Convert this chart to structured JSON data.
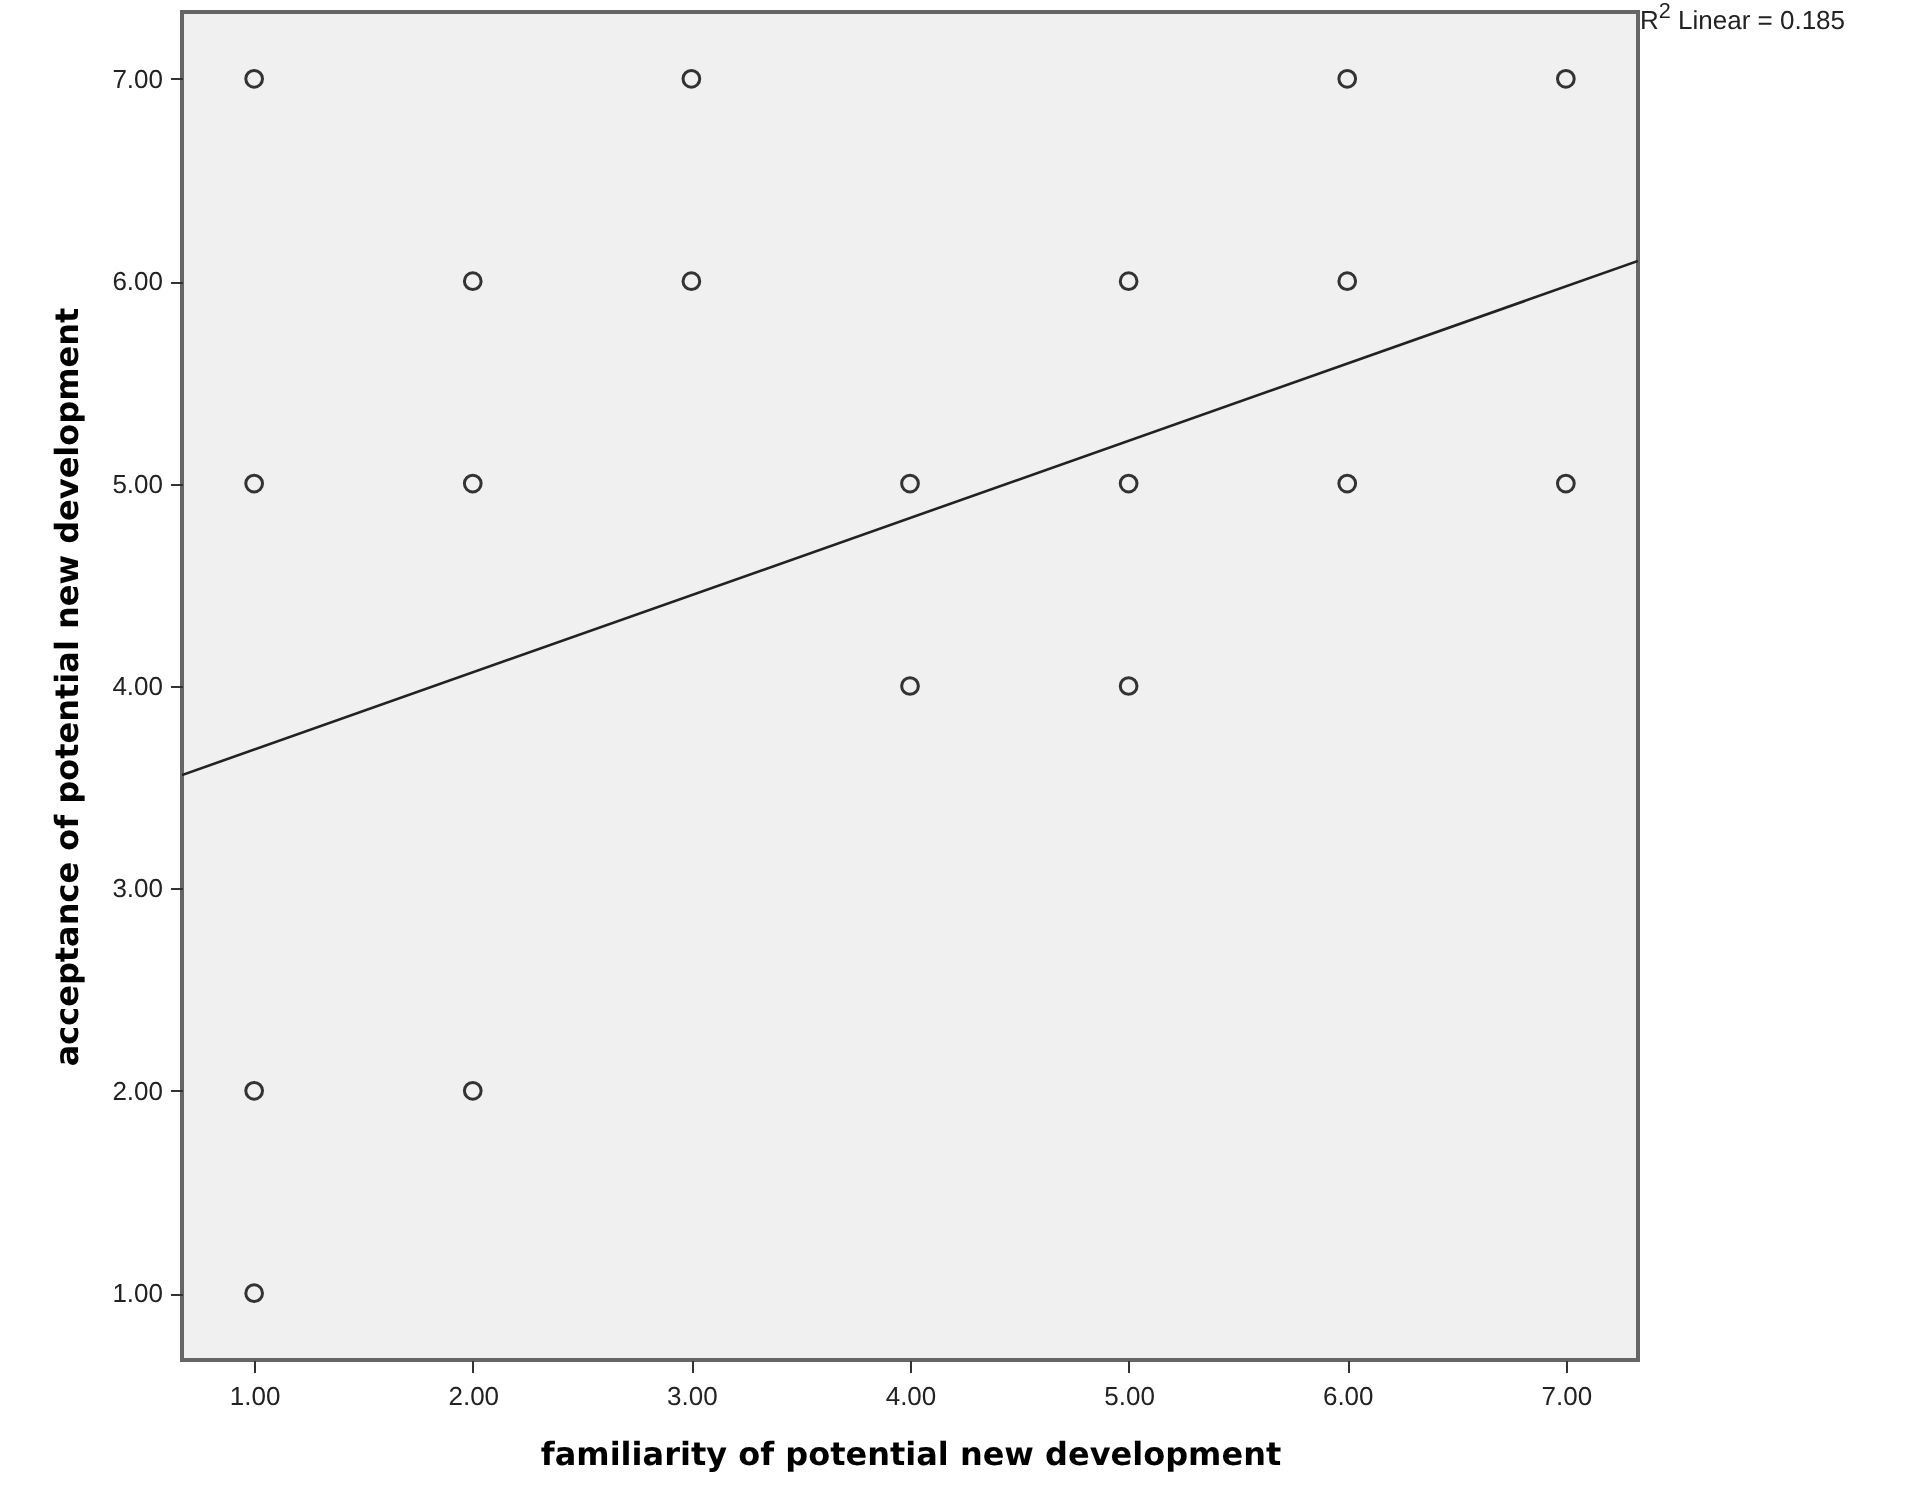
{
  "chart_data": {
    "type": "scatter",
    "xlabel": "familiarity of potential new development",
    "ylabel": "acceptance of potential new development",
    "xlim": [
      0.67,
      7.33
    ],
    "ylim": [
      0.67,
      7.33
    ],
    "xticks": [
      {
        "value": 1,
        "label": "1.00"
      },
      {
        "value": 2,
        "label": "2.00"
      },
      {
        "value": 3,
        "label": "3.00"
      },
      {
        "value": 4,
        "label": "4.00"
      },
      {
        "value": 5,
        "label": "5.00"
      },
      {
        "value": 6,
        "label": "6.00"
      },
      {
        "value": 7,
        "label": "7.00"
      }
    ],
    "yticks": [
      {
        "value": 1,
        "label": "1.00"
      },
      {
        "value": 2,
        "label": "2.00"
      },
      {
        "value": 3,
        "label": "3.00"
      },
      {
        "value": 4,
        "label": "4.00"
      },
      {
        "value": 5,
        "label": "5.00"
      },
      {
        "value": 6,
        "label": "6.00"
      },
      {
        "value": 7,
        "label": "7.00"
      }
    ],
    "series": [
      {
        "color": "#333333",
        "marker": "circle",
        "x": [
          1,
          1,
          1,
          1,
          2,
          2,
          2,
          3,
          3,
          4,
          4,
          5,
          5,
          5,
          6,
          6,
          6,
          7,
          7
        ],
        "values": [
          7,
          5,
          2,
          1,
          6,
          5,
          2,
          7,
          6,
          5,
          4,
          6,
          5,
          4,
          7,
          6,
          5,
          7,
          5
        ]
      },
      {
        "type": "line",
        "color": "#222222",
        "marker": "none",
        "x": [
          0.67,
          7.33
        ],
        "values": [
          3.56,
          6.1
        ]
      }
    ],
    "annotations": [
      "R$^{2}$ Linear = 0.185"
    ],
    "grid": false
  }
}
